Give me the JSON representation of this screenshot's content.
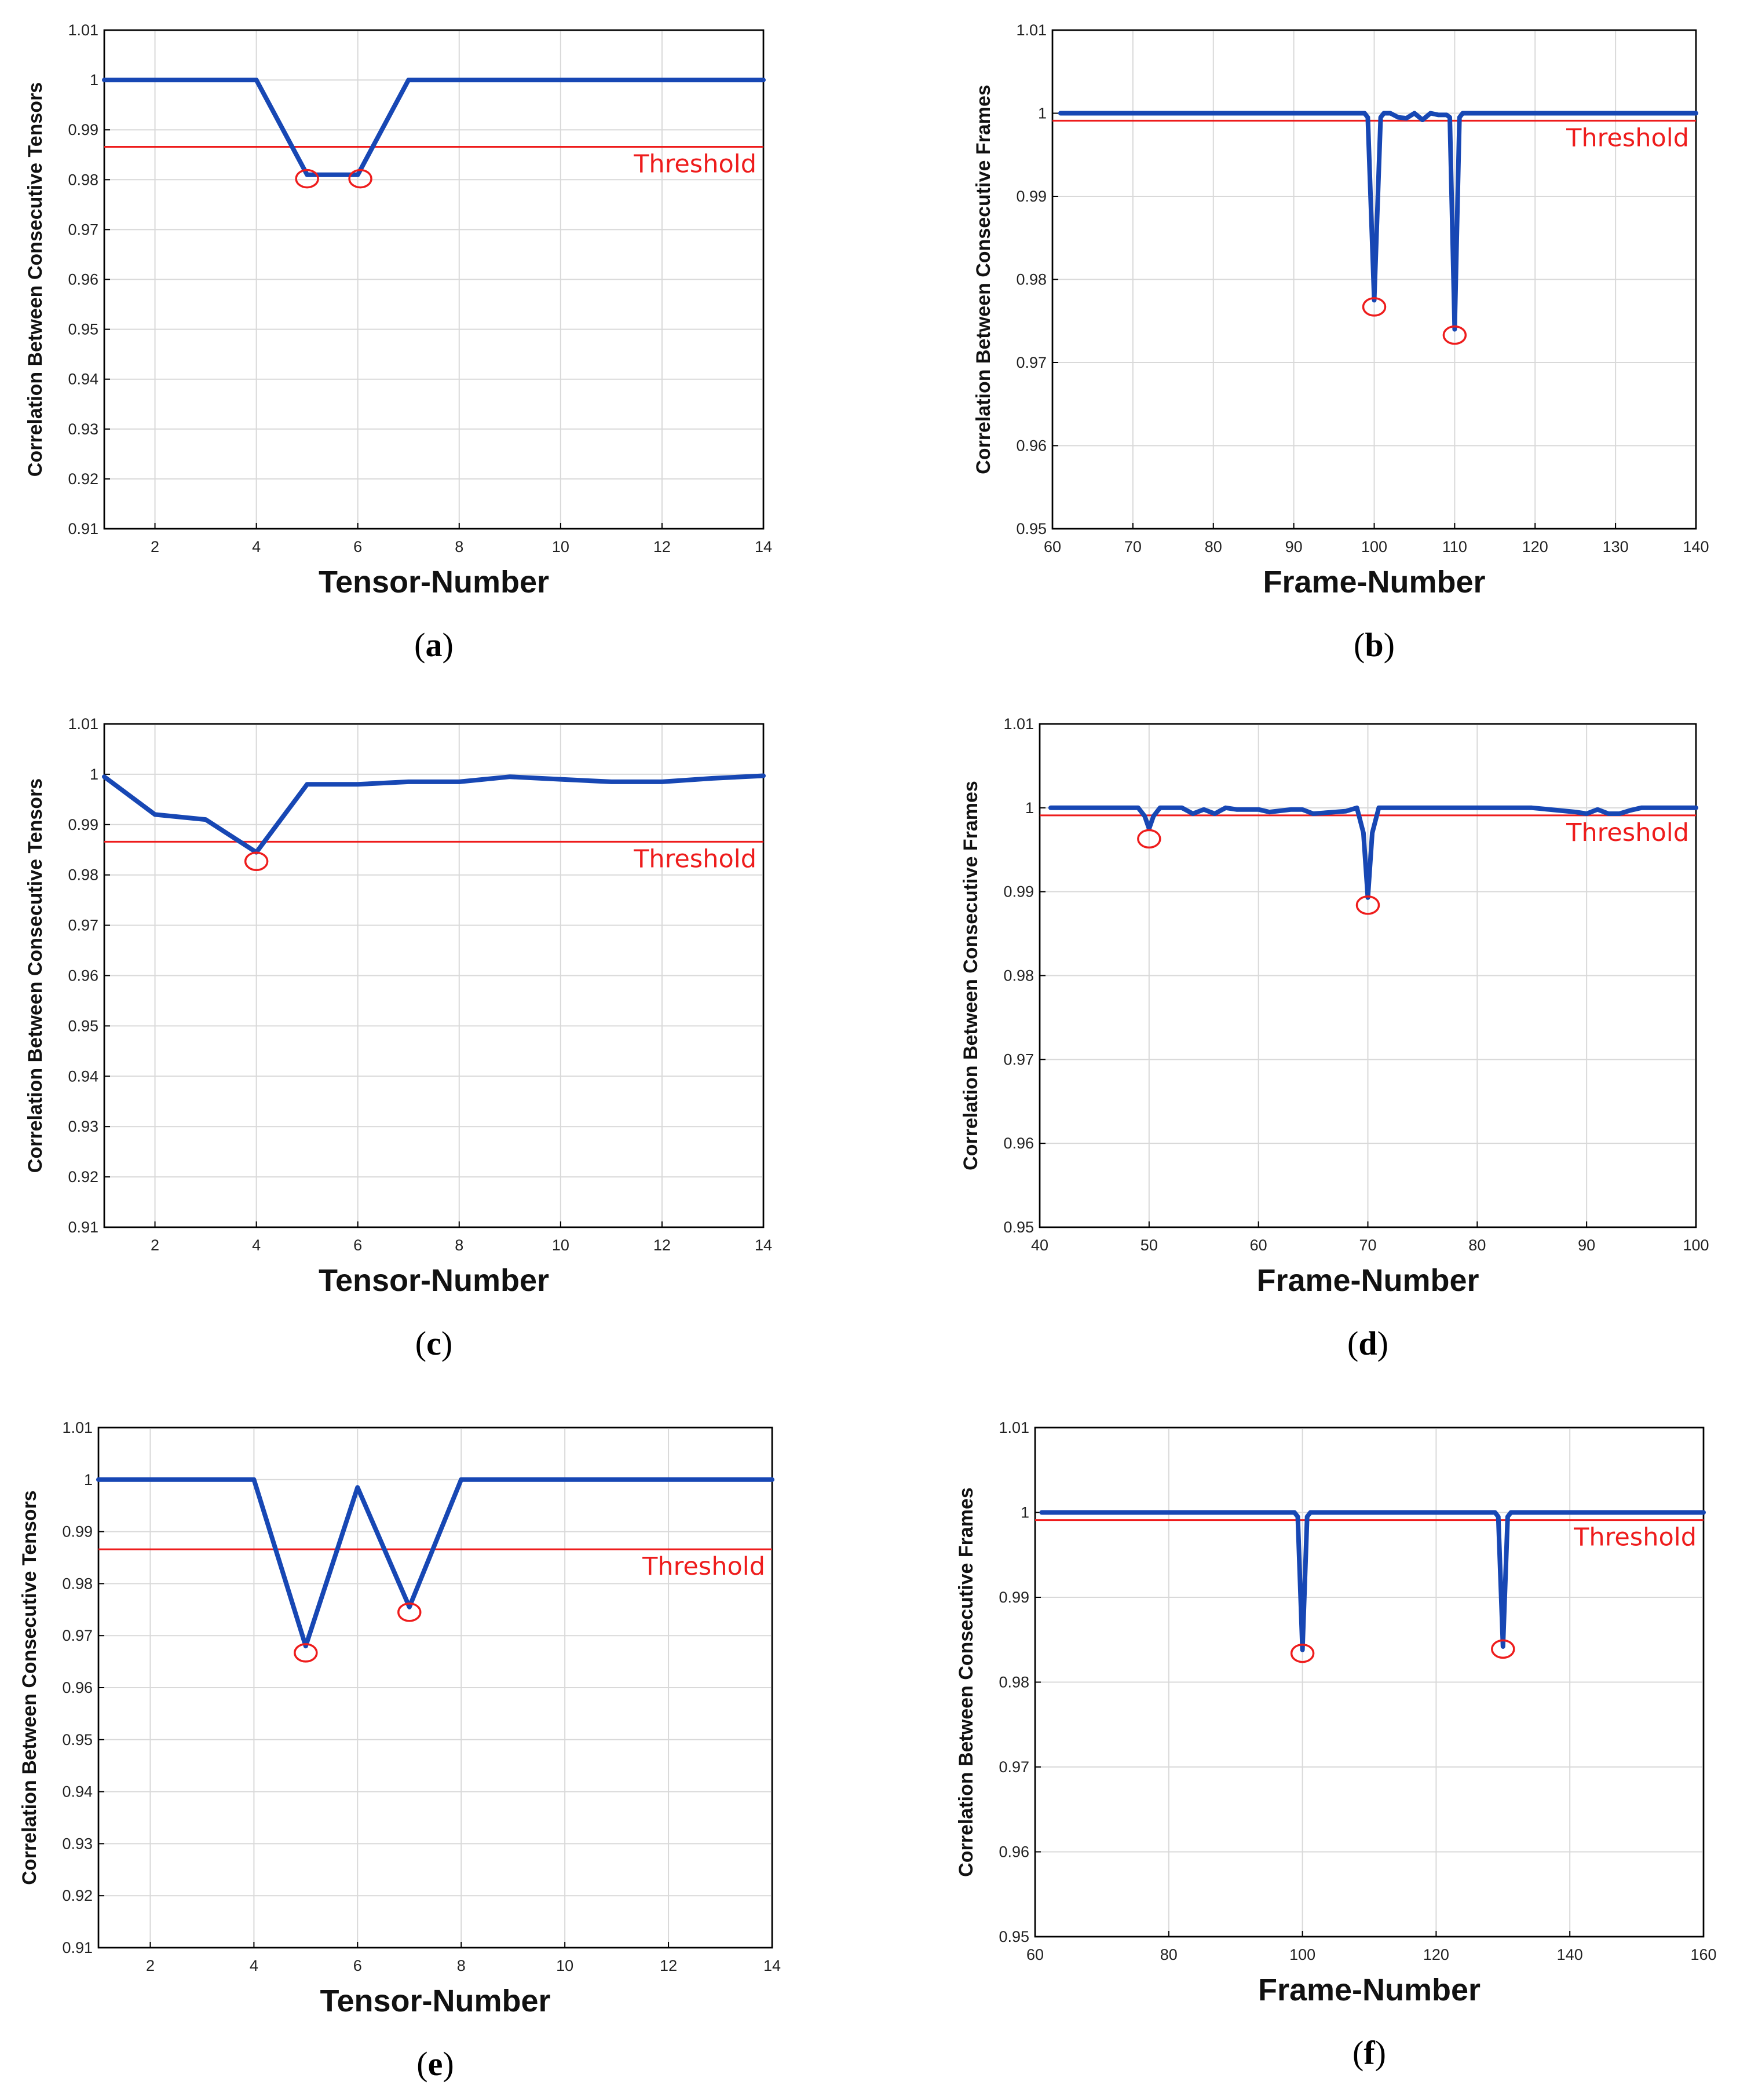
{
  "colors": {
    "series": "#1747b4",
    "threshold": "#ee1c1c"
  },
  "chart_data": [
    {
      "id": "a",
      "caption": "a",
      "type": "line",
      "xlabel": "Tensor-Number",
      "ylabel": "Correlation Between Consecutive Tensors",
      "xlim": [
        1,
        14
      ],
      "ylim": [
        0.91,
        1.01
      ],
      "xticks": [
        2,
        4,
        6,
        8,
        10,
        12,
        14
      ],
      "yticks": [
        0.91,
        0.92,
        0.93,
        0.94,
        0.95,
        0.96,
        0.97,
        0.98,
        0.99,
        1,
        1.01
      ],
      "ytick_labels": [
        "0.91",
        "0.92",
        "0.93",
        "0.94",
        "0.95",
        "0.96",
        "0.97",
        "0.98",
        "0.99",
        "1",
        "1.01"
      ],
      "series": [
        {
          "name": "correlation",
          "x": [
            1,
            2,
            3,
            4,
            5,
            6,
            7,
            8,
            9,
            10,
            11,
            12,
            13,
            14
          ],
          "y": [
            1,
            1,
            1,
            1,
            0.981,
            0.981,
            1,
            1,
            1,
            1,
            1,
            1,
            1,
            1
          ]
        }
      ],
      "threshold": {
        "value": 0.9866,
        "label": "Threshold"
      },
      "highlighted": [
        {
          "x": 5,
          "y": 0.9802
        },
        {
          "x": 6.05,
          "y": 0.9802
        }
      ]
    },
    {
      "id": "b",
      "caption": "b",
      "type": "line",
      "xlabel": "Frame-Number",
      "ylabel": "Correlation Between Consecutive Frames",
      "xlim": [
        60,
        140
      ],
      "ylim": [
        0.95,
        1.01
      ],
      "xticks": [
        60,
        70,
        80,
        90,
        100,
        110,
        120,
        130,
        140
      ],
      "yticks": [
        0.95,
        0.96,
        0.97,
        0.98,
        0.99,
        1,
        1.01
      ],
      "ytick_labels": [
        "0.95",
        "0.96",
        "0.97",
        "0.98",
        "0.99",
        "1",
        "1.01"
      ],
      "series": [
        {
          "name": "correlation",
          "x": [
            61,
            98.8,
            99.2,
            100,
            100.8,
            101.2,
            102,
            103,
            104,
            105,
            106,
            107,
            108,
            109,
            109.4,
            110,
            110.6,
            111,
            120,
            130,
            140
          ],
          "y": [
            1,
            1,
            0.9995,
            0.9775,
            0.9995,
            1,
            1,
            0.9995,
            0.9994,
            1,
            0.9992,
            1,
            0.9998,
            0.9998,
            0.9995,
            0.974,
            0.9995,
            1,
            1,
            1,
            1
          ]
        }
      ],
      "threshold": {
        "value": 0.9991,
        "label": "Threshold"
      },
      "highlighted": [
        {
          "x": 100,
          "y": 0.9767
        },
        {
          "x": 110,
          "y": 0.9733
        }
      ]
    },
    {
      "id": "c",
      "caption": "c",
      "type": "line",
      "xlabel": "Tensor-Number",
      "ylabel": "Correlation Between Consecutive Tensors",
      "xlim": [
        1,
        14
      ],
      "ylim": [
        0.91,
        1.01
      ],
      "xticks": [
        2,
        4,
        6,
        8,
        10,
        12,
        14
      ],
      "yticks": [
        0.91,
        0.92,
        0.93,
        0.94,
        0.95,
        0.96,
        0.97,
        0.98,
        0.99,
        1,
        1.01
      ],
      "ytick_labels": [
        "0.91",
        "0.92",
        "0.93",
        "0.94",
        "0.95",
        "0.96",
        "0.97",
        "0.98",
        "0.99",
        "1",
        "1.01"
      ],
      "series": [
        {
          "name": "correlation",
          "x": [
            1,
            2,
            3,
            4,
            5,
            6,
            7,
            8,
            9,
            10,
            11,
            12,
            13,
            14
          ],
          "y": [
            0.9995,
            0.992,
            0.991,
            0.9845,
            0.998,
            0.998,
            0.9985,
            0.9985,
            0.9995,
            0.999,
            0.9985,
            0.9985,
            0.9992,
            0.9997
          ]
        }
      ],
      "threshold": {
        "value": 0.9866,
        "label": "Threshold"
      },
      "highlighted": [
        {
          "x": 4,
          "y": 0.9827
        }
      ]
    },
    {
      "id": "d",
      "caption": "d",
      "type": "line",
      "xlabel": "Frame-Number",
      "ylabel": "Correlation Between Consecutive Frames",
      "xlim": [
        40,
        100
      ],
      "ylim": [
        0.95,
        1.01
      ],
      "xticks": [
        40,
        50,
        60,
        70,
        80,
        90,
        100
      ],
      "yticks": [
        0.95,
        0.96,
        0.97,
        0.98,
        0.99,
        1,
        1.01
      ],
      "ytick_labels": [
        "0.95",
        "0.96",
        "0.97",
        "0.98",
        "0.99",
        "1",
        "1.01"
      ],
      "series": [
        {
          "name": "correlation",
          "x": [
            41,
            48,
            49,
            49.6,
            50,
            50.4,
            51,
            53,
            54,
            55,
            56,
            57,
            58,
            60,
            61,
            63,
            64,
            65,
            68,
            69,
            69.6,
            70,
            70.4,
            71,
            72,
            75,
            80,
            85,
            89,
            90,
            91,
            92,
            93,
            94,
            95,
            100
          ],
          "y": [
            1,
            1,
            1,
            0.999,
            0.9975,
            0.999,
            1,
            1,
            0.9993,
            0.9998,
            0.9993,
            1,
            0.9998,
            0.9998,
            0.9995,
            0.9998,
            0.9998,
            0.9993,
            0.9996,
            1,
            0.997,
            0.9893,
            0.997,
            1,
            1,
            1,
            1,
            1,
            0.9995,
            0.9993,
            0.9998,
            0.9993,
            0.9993,
            0.9997,
            1,
            1
          ]
        }
      ],
      "threshold": {
        "value": 0.9991,
        "label": "Threshold"
      },
      "highlighted": [
        {
          "x": 50,
          "y": 0.9963
        },
        {
          "x": 70,
          "y": 0.9884
        }
      ]
    },
    {
      "id": "e",
      "caption": "e",
      "type": "line",
      "xlabel": "Tensor-Number",
      "ylabel": "Correlation Between Consecutive Tensors",
      "xlim": [
        1,
        14
      ],
      "ylim": [
        0.91,
        1.01
      ],
      "xticks": [
        2,
        4,
        6,
        8,
        10,
        12,
        14
      ],
      "yticks": [
        0.91,
        0.92,
        0.93,
        0.94,
        0.95,
        0.96,
        0.97,
        0.98,
        0.99,
        1,
        1.01
      ],
      "ytick_labels": [
        "0.91",
        "0.92",
        "0.93",
        "0.94",
        "0.95",
        "0.96",
        "0.97",
        "0.98",
        "0.99",
        "1",
        "1.01"
      ],
      "series": [
        {
          "name": "correlation",
          "x": [
            1,
            2,
            3,
            4,
            5,
            6,
            7,
            8,
            9,
            10,
            11,
            12,
            13,
            14
          ],
          "y": [
            1,
            1,
            1,
            1,
            0.968,
            0.9985,
            0.9755,
            1,
            1,
            1,
            1,
            1,
            1,
            1
          ]
        }
      ],
      "threshold": {
        "value": 0.9866,
        "label": "Threshold"
      },
      "highlighted": [
        {
          "x": 5,
          "y": 0.9667
        },
        {
          "x": 7,
          "y": 0.9745
        }
      ]
    },
    {
      "id": "f",
      "caption": "f",
      "type": "line",
      "xlabel": "Frame-Number",
      "ylabel": "Correlation Between Consecutive Frames",
      "xlim": [
        60,
        160
      ],
      "ylim": [
        0.95,
        1.01
      ],
      "xticks": [
        60,
        80,
        100,
        120,
        140,
        160
      ],
      "yticks": [
        0.95,
        0.96,
        0.97,
        0.98,
        0.99,
        1,
        1.01
      ],
      "ytick_labels": [
        "0.95",
        "0.96",
        "0.97",
        "0.98",
        "0.99",
        "1",
        "1.01"
      ],
      "series": [
        {
          "name": "correlation",
          "x": [
            61,
            98.8,
            99.3,
            100,
            100.7,
            101.2,
            128.8,
            129.3,
            130,
            130.7,
            131.2,
            160
          ],
          "y": [
            1,
            1,
            0.9995,
            0.9838,
            0.9995,
            1,
            1,
            0.9995,
            0.9842,
            0.9995,
            1,
            1
          ]
        }
      ],
      "threshold": {
        "value": 0.9991,
        "label": "Threshold"
      },
      "highlighted": [
        {
          "x": 100,
          "y": 0.9834
        },
        {
          "x": 130,
          "y": 0.9839
        }
      ]
    }
  ]
}
